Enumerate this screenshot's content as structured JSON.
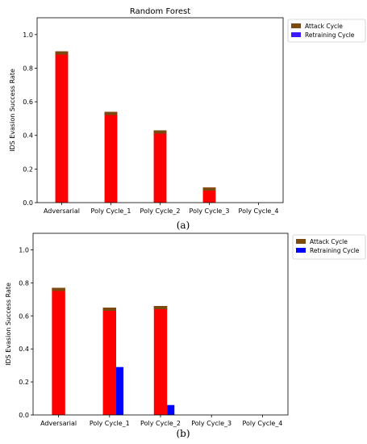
{
  "figure": {
    "captions": [
      "(a)",
      "(b)"
    ]
  },
  "chart_data": [
    {
      "type": "bar",
      "title": "Random Forest",
      "ylabel": "IDS Evasion Success Rate",
      "xlabel": "",
      "ylim": [
        0,
        1.1
      ],
      "yticks": [
        "0.0",
        "0.2",
        "0.4",
        "0.6",
        "0.8",
        "1.0"
      ],
      "categories": [
        "Adversarial",
        "Poly Cycle_1",
        "Poly Cycle_2",
        "Poly Cycle_3",
        "Poly Cycle_4"
      ],
      "series": [
        {
          "name": "Attack Cycle",
          "values": [
            0.9,
            0.54,
            0.43,
            0.09,
            0.0
          ],
          "color": "#7a4a10",
          "bar_color": "#ff0000"
        },
        {
          "name": "Retraining Cycle",
          "values": [
            0,
            0,
            0,
            0,
            0
          ],
          "color": "#3a1aff",
          "bar_color": "#3a1aff"
        }
      ],
      "legend": "top-right",
      "grid": false
    },
    {
      "type": "bar",
      "title": "",
      "ylabel": "IDS Evasion Success Rate",
      "xlabel": "",
      "ylim": [
        0,
        1.1
      ],
      "yticks": [
        "0.0",
        "0.2",
        "0.4",
        "0.6",
        "0.8",
        "1.0"
      ],
      "categories": [
        "Adversarial",
        "Poly Cycle_1",
        "Poly Cycle_2",
        "Poly Cycle_3",
        "Poly Cycle_4"
      ],
      "series": [
        {
          "name": "Attack Cycle",
          "values": [
            0.77,
            0.65,
            0.66,
            0.0,
            0.0
          ],
          "color": "#7a4a10",
          "bar_color": "#ff0000"
        },
        {
          "name": "Retraining Cycle",
          "values": [
            0,
            0.29,
            0.06,
            0,
            0
          ],
          "color": "#0000ff",
          "bar_color": "#0000ff"
        }
      ],
      "legend": "top-right",
      "grid": false
    }
  ]
}
